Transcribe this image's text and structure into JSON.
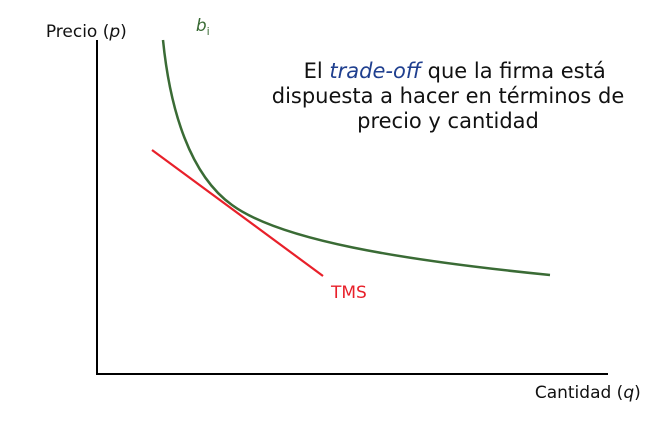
{
  "axes": {
    "y_label": "Precio (",
    "y_var": "p",
    "y_label_close": ")",
    "x_label": "Cantidad (",
    "x_var": "q",
    "x_label_close": ")"
  },
  "curves": {
    "indifference_name": "b",
    "indifference_sub": "i",
    "tangent_label": "TMS"
  },
  "annotation": {
    "line1_pre": "El ",
    "line1_em": "trade-off",
    "line1_post": " que la firma está",
    "line2": "dispuesta a hacer en términos de",
    "line3": "precio y cantidad"
  },
  "colors": {
    "axis": "#000000",
    "curve": "#3a6b35",
    "tangent": "#e8202a",
    "emphasis": "#1f3f8f",
    "text": "#111111"
  }
}
